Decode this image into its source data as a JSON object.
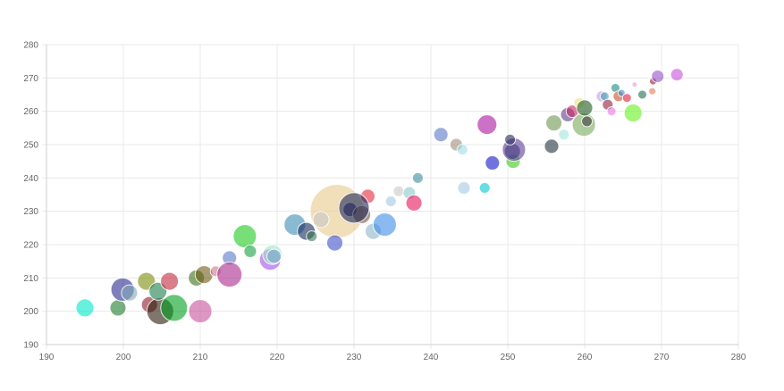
{
  "chart_data": {
    "type": "scatter",
    "variant": "bubble",
    "title": "",
    "xlabel": "",
    "ylabel": "",
    "xlim": [
      190,
      280
    ],
    "ylim": [
      190,
      280
    ],
    "x_ticks": [
      "190",
      "200",
      "210",
      "220",
      "230",
      "240",
      "250",
      "260",
      "270",
      "280"
    ],
    "y_ticks": [
      "190",
      "200",
      "210",
      "220",
      "230",
      "240",
      "250",
      "260",
      "270",
      "280"
    ],
    "grid": true,
    "legend": "none",
    "bubble_alpha": 0.6,
    "points": [
      {
        "x": 227.8,
        "y": 230.0,
        "r": 30,
        "color": "#e8c98a"
      },
      {
        "x": 195.0,
        "y": 201.0,
        "r": 10,
        "color": "#00e6c8"
      },
      {
        "x": 199.3,
        "y": 201.0,
        "r": 9,
        "color": "#1e7d2a"
      },
      {
        "x": 199.9,
        "y": 206.5,
        "r": 13,
        "color": "#2a2a8c"
      },
      {
        "x": 200.8,
        "y": 205.5,
        "r": 9,
        "color": "#7fa9b8"
      },
      {
        "x": 203.0,
        "y": 209.0,
        "r": 10,
        "color": "#7d8c0a"
      },
      {
        "x": 203.4,
        "y": 202.0,
        "r": 9,
        "color": "#8c1a2a"
      },
      {
        "x": 204.8,
        "y": 200.0,
        "r": 15,
        "color": "#2a1a0a"
      },
      {
        "x": 204.5,
        "y": 206.0,
        "r": 10,
        "color": "#1a7d4a"
      },
      {
        "x": 206.0,
        "y": 209.0,
        "r": 10,
        "color": "#c0283c"
      },
      {
        "x": 206.6,
        "y": 201.0,
        "r": 15,
        "color": "#00a01e"
      },
      {
        "x": 209.5,
        "y": 210.0,
        "r": 9,
        "color": "#3c6e14"
      },
      {
        "x": 210.0,
        "y": 200.0,
        "r": 13,
        "color": "#c8509a"
      },
      {
        "x": 210.5,
        "y": 211.0,
        "r": 10,
        "color": "#6e5a14"
      },
      {
        "x": 212.0,
        "y": 212.0,
        "r": 6,
        "color": "#c87a8c"
      },
      {
        "x": 213.8,
        "y": 216.0,
        "r": 8,
        "color": "#5a78c8"
      },
      {
        "x": 213.8,
        "y": 211.0,
        "r": 14,
        "color": "#aa288c"
      },
      {
        "x": 215.8,
        "y": 222.5,
        "r": 13,
        "color": "#1ec81e"
      },
      {
        "x": 216.5,
        "y": 218.0,
        "r": 7,
        "color": "#14a03c"
      },
      {
        "x": 219.1,
        "y": 215.5,
        "r": 12,
        "color": "#a050e6"
      },
      {
        "x": 219.4,
        "y": 217.0,
        "r": 11,
        "color": "#a0e6c8"
      },
      {
        "x": 219.6,
        "y": 216.5,
        "r": 8,
        "color": "#78aac8"
      },
      {
        "x": 222.3,
        "y": 226.0,
        "r": 12,
        "color": "#3c8cb4"
      },
      {
        "x": 223.8,
        "y": 224.0,
        "r": 10,
        "color": "#14285a"
      },
      {
        "x": 224.5,
        "y": 222.5,
        "r": 6,
        "color": "#3c7850"
      },
      {
        "x": 225.7,
        "y": 227.5,
        "r": 9,
        "color": "#c8c8c8"
      },
      {
        "x": 227.5,
        "y": 220.5,
        "r": 9,
        "color": "#3c50c8"
      },
      {
        "x": 229.5,
        "y": 230.5,
        "r": 8,
        "color": "#1e1e50"
      },
      {
        "x": 231.0,
        "y": 229.0,
        "r": 10,
        "color": "#78503c"
      },
      {
        "x": 231.8,
        "y": 234.5,
        "r": 8,
        "color": "#e6283c"
      },
      {
        "x": 232.5,
        "y": 224.0,
        "r": 9,
        "color": "#8cb4c8"
      },
      {
        "x": 234.0,
        "y": 226.0,
        "r": 13,
        "color": "#3c8ce6"
      },
      {
        "x": 234.8,
        "y": 233.0,
        "r": 6,
        "color": "#a0c8e6"
      },
      {
        "x": 230.0,
        "y": 231.0,
        "r": 17,
        "color": "#1e285a"
      },
      {
        "x": 235.8,
        "y": 236.0,
        "r": 6,
        "color": "#c8c8c8"
      },
      {
        "x": 237.2,
        "y": 235.5,
        "r": 7,
        "color": "#8cc8c8"
      },
      {
        "x": 237.8,
        "y": 232.5,
        "r": 9,
        "color": "#e6145a"
      },
      {
        "x": 238.3,
        "y": 240.0,
        "r": 6,
        "color": "#3c8ca0"
      },
      {
        "x": 241.3,
        "y": 253.0,
        "r": 8,
        "color": "#5a78c8"
      },
      {
        "x": 243.3,
        "y": 250.0,
        "r": 7,
        "color": "#a08c78"
      },
      {
        "x": 244.1,
        "y": 248.5,
        "r": 6,
        "color": "#a0dce6"
      },
      {
        "x": 244.3,
        "y": 237.0,
        "r": 7,
        "color": "#a0c8e6"
      },
      {
        "x": 247.0,
        "y": 237.0,
        "r": 6,
        "color": "#00c8d2"
      },
      {
        "x": 247.3,
        "y": 256.0,
        "r": 11,
        "color": "#aa14a0"
      },
      {
        "x": 248.0,
        "y": 244.5,
        "r": 8,
        "color": "#1414c8"
      },
      {
        "x": 250.7,
        "y": 245.0,
        "r": 8,
        "color": "#3cc814"
      },
      {
        "x": 250.6,
        "y": 248.0,
        "r": 9,
        "color": "#1e3c5a"
      },
      {
        "x": 250.8,
        "y": 248.5,
        "r": 13,
        "color": "#5a3c96"
      },
      {
        "x": 250.3,
        "y": 251.5,
        "r": 6,
        "color": "#28285a"
      },
      {
        "x": 255.7,
        "y": 249.5,
        "r": 8,
        "color": "#1e323c"
      },
      {
        "x": 256.0,
        "y": 256.5,
        "r": 9,
        "color": "#6e9650"
      },
      {
        "x": 257.3,
        "y": 253.0,
        "r": 6,
        "color": "#a0e6dc"
      },
      {
        "x": 257.8,
        "y": 259.0,
        "r": 8,
        "color": "#5a3c8c"
      },
      {
        "x": 258.4,
        "y": 260.0,
        "r": 7,
        "color": "#c82864"
      },
      {
        "x": 259.3,
        "y": 262.5,
        "r": 6,
        "color": "#e6e678"
      },
      {
        "x": 259.9,
        "y": 256.0,
        "r": 13,
        "color": "#78aa5a"
      },
      {
        "x": 260.0,
        "y": 261.0,
        "r": 9,
        "color": "#1e5a1e"
      },
      {
        "x": 260.3,
        "y": 257.0,
        "r": 6,
        "color": "#3c3c3c"
      },
      {
        "x": 262.2,
        "y": 264.5,
        "r": 6,
        "color": "#c896e6"
      },
      {
        "x": 262.6,
        "y": 264.5,
        "r": 5,
        "color": "#3ca0b4"
      },
      {
        "x": 263.0,
        "y": 262.0,
        "r": 6,
        "color": "#8c1e3c"
      },
      {
        "x": 263.5,
        "y": 260.0,
        "r": 5,
        "color": "#e678e6"
      },
      {
        "x": 264.0,
        "y": 267.0,
        "r": 5,
        "color": "#148c78"
      },
      {
        "x": 264.4,
        "y": 264.5,
        "r": 6,
        "color": "#c85028"
      },
      {
        "x": 264.8,
        "y": 265.5,
        "r": 4,
        "color": "#3c8cc8"
      },
      {
        "x": 265.5,
        "y": 264.0,
        "r": 5,
        "color": "#dc1e3c"
      },
      {
        "x": 266.3,
        "y": 259.5,
        "r": 10,
        "color": "#64f01e"
      },
      {
        "x": 266.5,
        "y": 268.0,
        "r": 3,
        "color": "#e6a0c8"
      },
      {
        "x": 267.5,
        "y": 265.0,
        "r": 5,
        "color": "#1e6e50"
      },
      {
        "x": 268.8,
        "y": 266.0,
        "r": 4,
        "color": "#e6785a"
      },
      {
        "x": 268.9,
        "y": 269.0,
        "r": 4,
        "color": "#8c1e28"
      },
      {
        "x": 269.5,
        "y": 270.5,
        "r": 7,
        "color": "#9650c8"
      },
      {
        "x": 272.0,
        "y": 271.0,
        "r": 7,
        "color": "#c850dc"
      }
    ]
  }
}
